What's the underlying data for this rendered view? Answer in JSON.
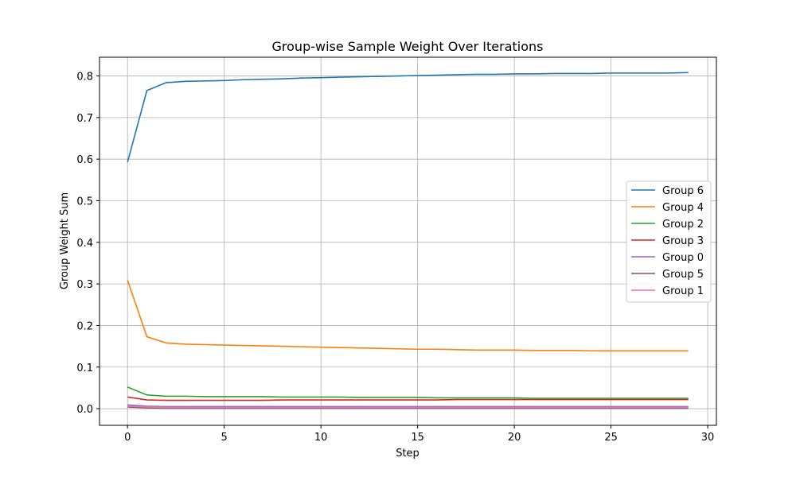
{
  "chart_data": {
    "type": "line",
    "title": "Group-wise Sample Weight Over Iterations",
    "xlabel": "Step",
    "ylabel": "Group Weight Sum",
    "xlim": [
      -1.45,
      30.45
    ],
    "ylim": [
      -0.04,
      0.845
    ],
    "xticks": [
      0,
      5,
      10,
      15,
      20,
      25,
      30
    ],
    "yticks": [
      0.0,
      0.1,
      0.2,
      0.3,
      0.4,
      0.5,
      0.6,
      0.7,
      0.8
    ],
    "grid": true,
    "legend_position": "center-right",
    "x": [
      0,
      1,
      2,
      3,
      4,
      5,
      6,
      7,
      8,
      9,
      10,
      11,
      12,
      13,
      14,
      15,
      16,
      17,
      18,
      19,
      20,
      21,
      22,
      23,
      24,
      25,
      26,
      27,
      28,
      29
    ],
    "series": [
      {
        "name": "Group 6",
        "color": "#1f77b4",
        "values": [
          0.593,
          0.765,
          0.784,
          0.787,
          0.788,
          0.789,
          0.791,
          0.792,
          0.793,
          0.795,
          0.796,
          0.797,
          0.798,
          0.799,
          0.8,
          0.801,
          0.802,
          0.803,
          0.804,
          0.804,
          0.805,
          0.805,
          0.806,
          0.806,
          0.806,
          0.807,
          0.807,
          0.807,
          0.807,
          0.808
        ]
      },
      {
        "name": "Group 4",
        "color": "#ff7f0e",
        "values": [
          0.309,
          0.173,
          0.158,
          0.155,
          0.154,
          0.153,
          0.152,
          0.151,
          0.15,
          0.149,
          0.148,
          0.147,
          0.146,
          0.145,
          0.144,
          0.143,
          0.143,
          0.142,
          0.141,
          0.141,
          0.141,
          0.14,
          0.14,
          0.14,
          0.139,
          0.139,
          0.139,
          0.139,
          0.139,
          0.139
        ]
      },
      {
        "name": "Group 2",
        "color": "#2ca02c",
        "values": [
          0.052,
          0.033,
          0.03,
          0.03,
          0.029,
          0.029,
          0.029,
          0.029,
          0.028,
          0.028,
          0.028,
          0.028,
          0.027,
          0.027,
          0.027,
          0.027,
          0.026,
          0.026,
          0.026,
          0.026,
          0.026,
          0.025,
          0.025,
          0.025,
          0.025,
          0.025,
          0.025,
          0.025,
          0.025,
          0.025
        ]
      },
      {
        "name": "Group 3",
        "color": "#d62728",
        "values": [
          0.028,
          0.021,
          0.02,
          0.02,
          0.02,
          0.02,
          0.02,
          0.02,
          0.021,
          0.021,
          0.021,
          0.021,
          0.021,
          0.021,
          0.021,
          0.021,
          0.021,
          0.022,
          0.022,
          0.022,
          0.022,
          0.022,
          0.022,
          0.022,
          0.022,
          0.022,
          0.022,
          0.022,
          0.022,
          0.022
        ]
      },
      {
        "name": "Group 0",
        "color": "#9467bd",
        "values": [
          0.009,
          0.006,
          0.005,
          0.005,
          0.005,
          0.005,
          0.005,
          0.005,
          0.005,
          0.005,
          0.005,
          0.005,
          0.005,
          0.005,
          0.005,
          0.005,
          0.005,
          0.005,
          0.005,
          0.005,
          0.005,
          0.005,
          0.005,
          0.005,
          0.005,
          0.005,
          0.005,
          0.005,
          0.005,
          0.005
        ]
      },
      {
        "name": "Group 5",
        "color": "#8c564b",
        "values": [
          0.004,
          0.002,
          0.001,
          0.001,
          0.001,
          0.001,
          0.001,
          0.001,
          0.001,
          0.001,
          0.001,
          0.001,
          0.001,
          0.001,
          0.001,
          0.001,
          0.001,
          0.001,
          0.001,
          0.001,
          0.001,
          0.001,
          0.001,
          0.001,
          0.001,
          0.001,
          0.001,
          0.001,
          0.001,
          0.001
        ]
      },
      {
        "name": "Group 1",
        "color": "#e377c2",
        "values": [
          0.006,
          0.004,
          0.003,
          0.003,
          0.003,
          0.003,
          0.003,
          0.003,
          0.003,
          0.003,
          0.003,
          0.003,
          0.003,
          0.003,
          0.003,
          0.003,
          0.003,
          0.003,
          0.003,
          0.003,
          0.003,
          0.003,
          0.003,
          0.003,
          0.003,
          0.003,
          0.003,
          0.003,
          0.003,
          0.003
        ]
      }
    ]
  }
}
